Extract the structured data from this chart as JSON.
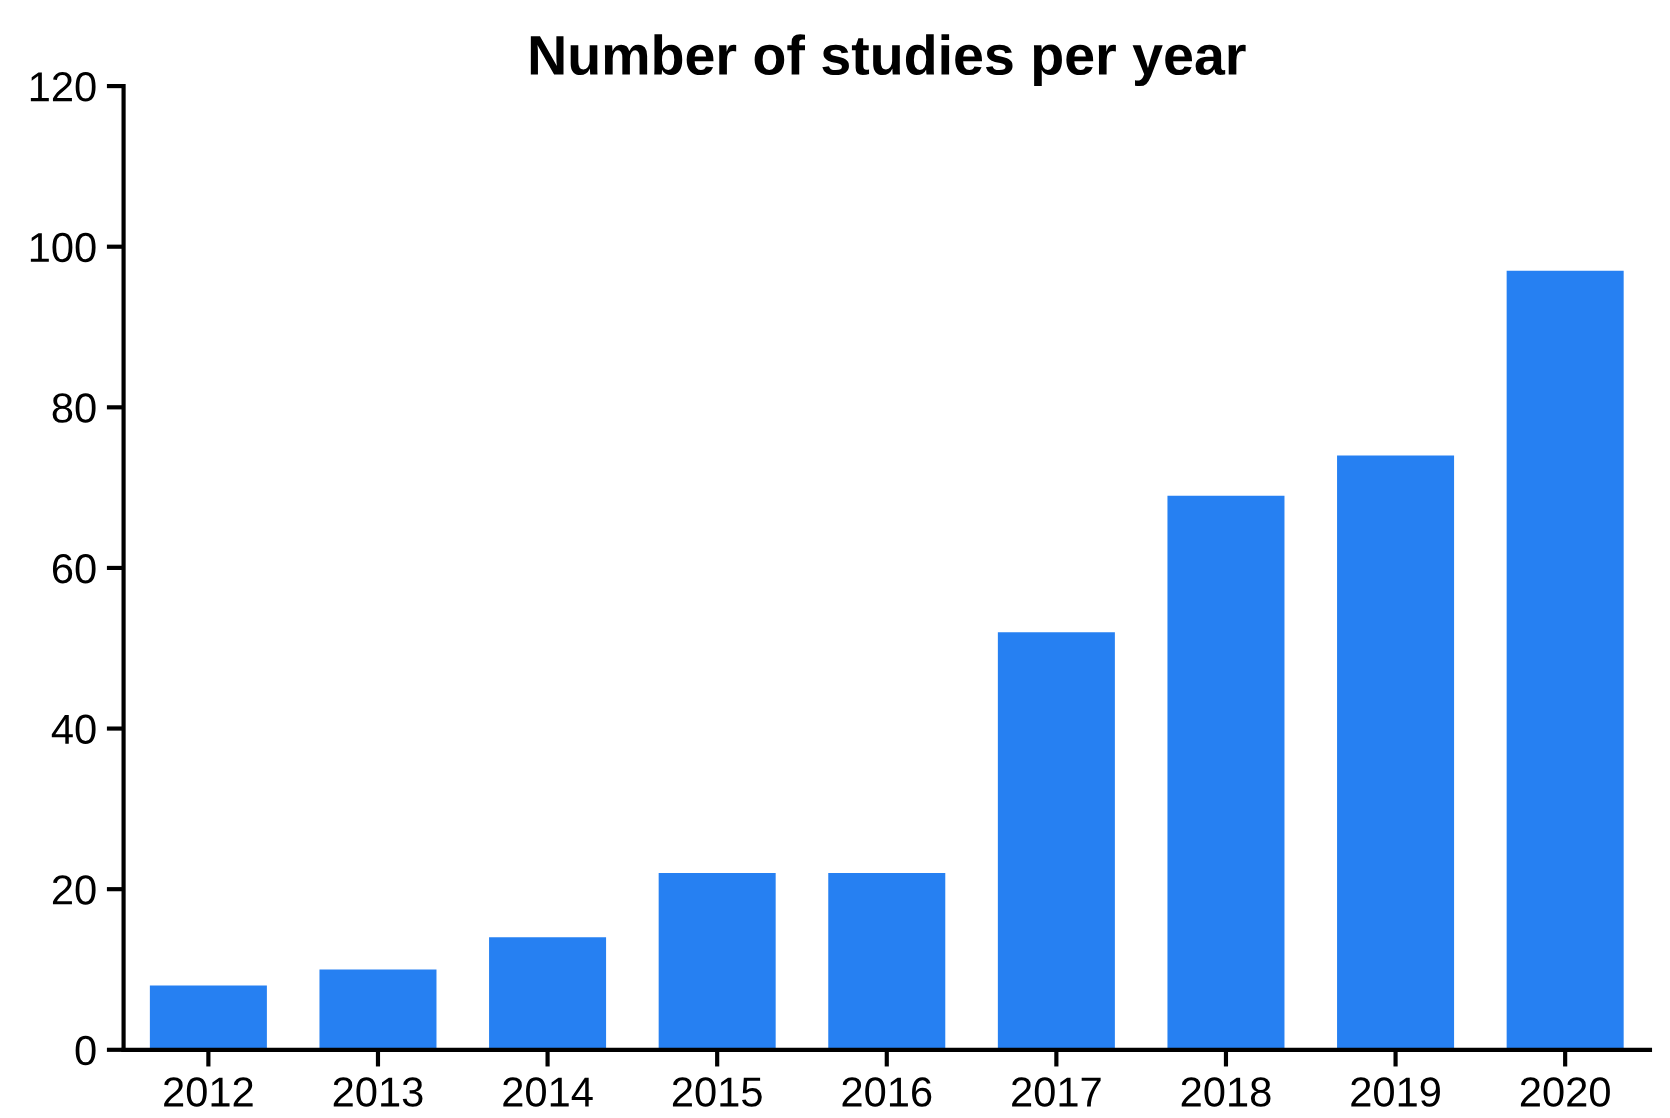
{
  "chart_data": {
    "type": "bar",
    "title": "Number of studies per year",
    "categories": [
      "2012",
      "2013",
      "2014",
      "2015",
      "2016",
      "2017",
      "2018",
      "2019",
      "2020"
    ],
    "values": [
      8,
      10,
      14,
      22,
      22,
      52,
      69,
      74,
      97
    ],
    "color": "#2680f2",
    "ylim": [
      0,
      120
    ],
    "yticks": [
      0,
      20,
      40,
      60,
      80,
      100,
      120
    ],
    "grid": false,
    "legend": false
  }
}
